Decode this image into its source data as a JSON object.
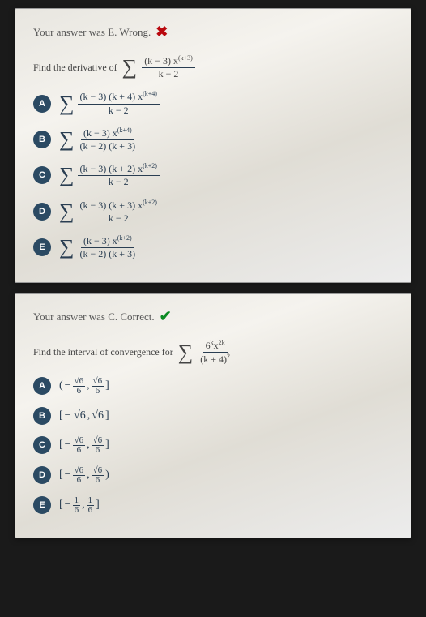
{
  "card1": {
    "feedback_text": "Your answer was E. Wrong.",
    "feedback_state": "wrong",
    "prompt_prefix": "Find the derivative of",
    "prompt_num": "(k − 3) x",
    "prompt_exp": "(k+3)",
    "prompt_den": "k − 2",
    "options": {
      "A": {
        "num": "(k − 3) (k + 4) x",
        "exp": "(k+4)",
        "den": "k − 2"
      },
      "B": {
        "num": "(k − 3) x",
        "exp": "(k+4)",
        "den": "(k − 2) (k + 3)"
      },
      "C": {
        "num": "(k − 3) (k + 2) x",
        "exp": "(k+2)",
        "den": "k − 2"
      },
      "D": {
        "num": "(k − 3) (k + 3) x",
        "exp": "(k+2)",
        "den": "k − 2"
      },
      "E": {
        "num": "(k − 3) x",
        "exp": "(k+2)",
        "den": "(k − 2) (k + 3)"
      }
    }
  },
  "card2": {
    "feedback_text": "Your answer was C. Correct.",
    "feedback_state": "correct",
    "prompt_prefix": "Find the interval of convergence for",
    "prompt_num_a": "6",
    "prompt_num_exp_a": "k",
    "prompt_num_b": "x",
    "prompt_num_exp_b": "2k",
    "prompt_den_base": "(k + 4)",
    "prompt_den_exp": "2",
    "options": {
      "A": {
        "open": "(",
        "a_sign": "−",
        "a_n": "√6",
        "a_d": "6",
        "b_n": "√6",
        "b_d": "6",
        "close": "]"
      },
      "B": {
        "open": "[",
        "plain_a": "− √6",
        "plain_b": "√6",
        "close": "]"
      },
      "C": {
        "open": "[",
        "a_sign": "−",
        "a_n": "√6",
        "a_d": "6",
        "b_n": "√6",
        "b_d": "6",
        "close": "]"
      },
      "D": {
        "open": "[",
        "a_sign": "−",
        "a_n": "√6",
        "a_d": "6",
        "b_n": "√6",
        "b_d": "6",
        "close": ")"
      },
      "E": {
        "open": "[",
        "a_sign": "−",
        "a_n": "1",
        "a_d": "6",
        "b_n": "1",
        "b_d": "6",
        "close": "]"
      }
    }
  },
  "labels": {
    "A": "A",
    "B": "B",
    "C": "C",
    "D": "D",
    "E": "E"
  },
  "colors": {
    "label_bg": "#2b4a63",
    "wrong": "#b9080e",
    "correct": "#0a8a22",
    "text": "#2a3e52"
  }
}
